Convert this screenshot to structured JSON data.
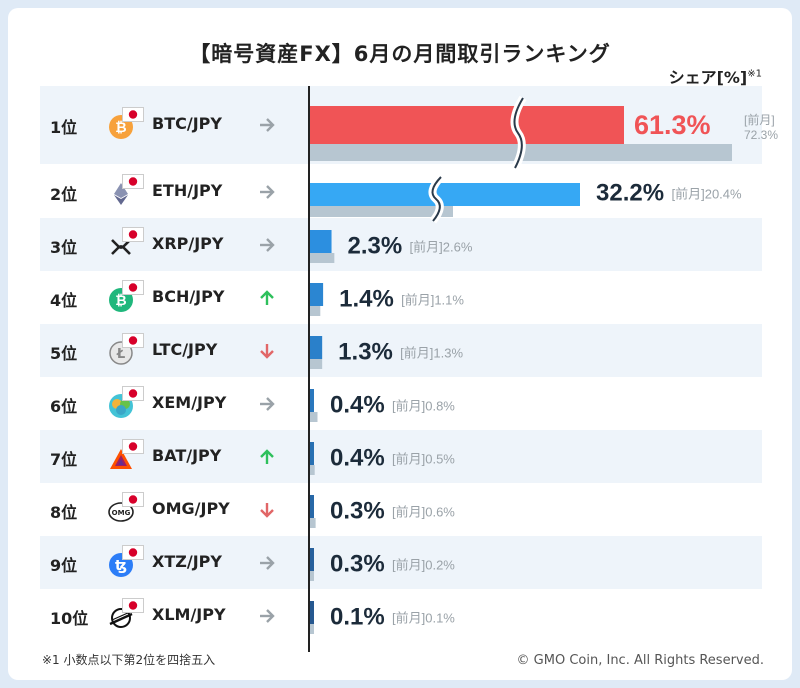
{
  "title": "【暗号資産FX】6月の月間取引ランキング",
  "share_label": "シェア[%]",
  "share_note_mark": "※1",
  "footnote": "※1  小数点以下第2位を四捨五入",
  "copyright": "© GMO Coin, Inc. All Rights Reserved.",
  "colors": {
    "top": "#f05456",
    "prev": "#b7c6d1",
    "row_alt": "#eef4fa",
    "up": "#2ec05c",
    "down": "#e16667",
    "same": "#9aa2a8"
  },
  "chart_data": {
    "type": "bar",
    "orientation": "horizontal",
    "title": "【暗号資産FX】6月の月間取引ランキング",
    "xlabel": "シェア[%]",
    "ylabel": "",
    "series": [
      {
        "name": "6月",
        "values": [
          61.3,
          32.2,
          2.3,
          1.4,
          1.3,
          0.4,
          0.4,
          0.3,
          0.3,
          0.1
        ]
      },
      {
        "name": "前月",
        "values": [
          72.3,
          20.4,
          2.6,
          1.1,
          1.3,
          0.8,
          0.5,
          0.6,
          0.2,
          0.1
        ]
      }
    ],
    "categories": [
      "BTC/JPY",
      "ETH/JPY",
      "XRP/JPY",
      "BCH/JPY",
      "LTC/JPY",
      "XEM/JPY",
      "BAT/JPY",
      "OMG/JPY",
      "XTZ/JPY",
      "XLM/JPY"
    ],
    "value_labels": [
      "61.3%",
      "32.2%",
      "2.3%",
      "1.4%",
      "1.3%",
      "0.4%",
      "0.4%",
      "0.3%",
      "0.3%",
      "0.1%"
    ],
    "prev_labels": [
      "72.3%",
      "20.4%",
      "2.6%",
      "1.1%",
      "1.3%",
      "0.8%",
      "0.5%",
      "0.6%",
      "0.2%",
      "0.1%"
    ],
    "prev_prefix": "[前月]",
    "axis_breaks": [
      "BTC/JPY",
      "ETH/JPY"
    ]
  },
  "rows": [
    {
      "rank": "1位",
      "pair": "BTC/JPY",
      "coin_icon": "bitcoin-icon",
      "trend": "same"
    },
    {
      "rank": "2位",
      "pair": "ETH/JPY",
      "coin_icon": "ethereum-icon",
      "trend": "same"
    },
    {
      "rank": "3位",
      "pair": "XRP/JPY",
      "coin_icon": "xrp-icon",
      "trend": "same"
    },
    {
      "rank": "4位",
      "pair": "BCH/JPY",
      "coin_icon": "bitcoin-cash-icon",
      "trend": "up"
    },
    {
      "rank": "5位",
      "pair": "LTC/JPY",
      "coin_icon": "litecoin-icon",
      "trend": "down"
    },
    {
      "rank": "6位",
      "pair": "XEM/JPY",
      "coin_icon": "nem-icon",
      "trend": "same"
    },
    {
      "rank": "7位",
      "pair": "BAT/JPY",
      "coin_icon": "bat-icon",
      "trend": "up"
    },
    {
      "rank": "8位",
      "pair": "OMG/JPY",
      "coin_icon": "omg-icon",
      "trend": "down"
    },
    {
      "rank": "9位",
      "pair": "XTZ/JPY",
      "coin_icon": "tezos-icon",
      "trend": "same"
    },
    {
      "rank": "10位",
      "pair": "XLM/JPY",
      "coin_icon": "stellar-icon",
      "trend": "same"
    }
  ]
}
